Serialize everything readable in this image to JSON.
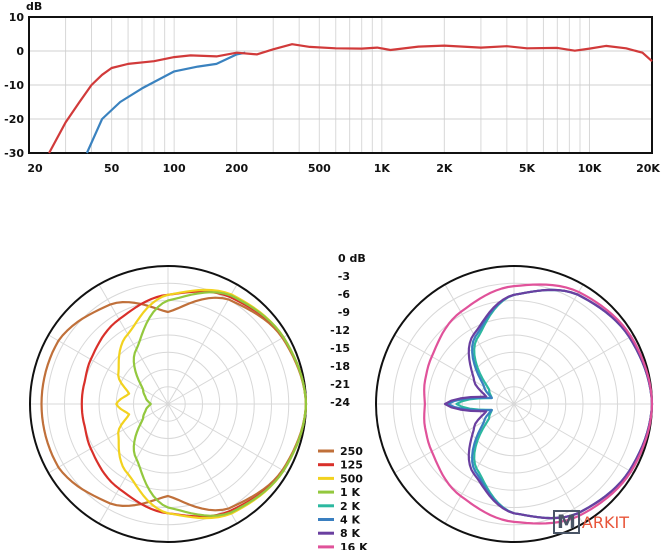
{
  "chart_data": [
    {
      "type": "line",
      "ylabel": "dB",
      "xscale": "log",
      "xlim": [
        20,
        20000
      ],
      "ylim": [
        -30,
        10
      ],
      "grid": true,
      "xticks": [
        {
          "v": 20,
          "label": "20"
        },
        {
          "v": 50,
          "label": "50"
        },
        {
          "v": 100,
          "label": "100"
        },
        {
          "v": 200,
          "label": "200"
        },
        {
          "v": 500,
          "label": "500"
        },
        {
          "v": 1000,
          "label": "1K"
        },
        {
          "v": 2000,
          "label": "2K"
        },
        {
          "v": 5000,
          "label": "5K"
        },
        {
          "v": 10000,
          "label": "10K"
        },
        {
          "v": 20000,
          "label": "20K"
        }
      ],
      "yticks": [
        {
          "v": 10,
          "label": "10"
        },
        {
          "v": 0,
          "label": "0"
        },
        {
          "v": -10,
          "label": "-10"
        },
        {
          "v": -20,
          "label": "-20"
        },
        {
          "v": -30,
          "label": "-30"
        }
      ],
      "series": [
        {
          "color": "#d13a3a",
          "points": [
            [
              25,
              -30
            ],
            [
              30,
              -21
            ],
            [
              35,
              -15
            ],
            [
              40,
              -10
            ],
            [
              45,
              -7
            ],
            [
              50,
              -5
            ],
            [
              60,
              -3.8
            ],
            [
              80,
              -3
            ],
            [
              100,
              -1.8
            ],
            [
              120,
              -1.3
            ],
            [
              160,
              -1.6
            ],
            [
              200,
              -0.5
            ],
            [
              250,
              -1
            ],
            [
              300,
              0.5
            ],
            [
              370,
              2
            ],
            [
              450,
              1.2
            ],
            [
              600,
              0.8
            ],
            [
              800,
              0.7
            ],
            [
              950,
              1
            ],
            [
              1100,
              0.3
            ],
            [
              1500,
              1.3
            ],
            [
              2000,
              1.6
            ],
            [
              3000,
              1
            ],
            [
              4000,
              1.4
            ],
            [
              5000,
              0.8
            ],
            [
              7000,
              0.9
            ],
            [
              8500,
              0.1
            ],
            [
              10000,
              0.7
            ],
            [
              12000,
              1.5
            ],
            [
              15000,
              0.8
            ],
            [
              18000,
              -0.5
            ],
            [
              20000,
              -3
            ]
          ]
        },
        {
          "color": "#3a82bf",
          "points": [
            [
              38,
              -30
            ],
            [
              45,
              -20
            ],
            [
              55,
              -15
            ],
            [
              70,
              -11
            ],
            [
              100,
              -6
            ],
            [
              130,
              -4.6
            ],
            [
              160,
              -3.8
            ],
            [
              200,
              -1
            ],
            [
              220,
              -0.5
            ]
          ]
        }
      ]
    },
    {
      "type": "polar",
      "scale_labels": [
        "0 dB",
        "-3",
        "-6",
        "-9",
        "-12",
        "-15",
        "-18",
        "-21",
        "-24"
      ],
      "rlim": [
        -24,
        0
      ],
      "angles": [
        0,
        30,
        60,
        90,
        120,
        150,
        165,
        180
      ],
      "plots": [
        {
          "series": [
            {
              "name": "250",
              "color": "#c0703a",
              "values": [
                0,
                -1,
                -3,
                -8,
                -4,
                -2,
                -2,
                -2
              ]
            },
            {
              "name": "125",
              "color": "#d9302a",
              "values": [
                0,
                -0.8,
                -2.5,
                -5,
                -7,
                -8.5,
                -9,
                -9
              ]
            },
            {
              "name": "500",
              "color": "#f2d21f",
              "values": [
                0,
                -0.8,
                -2,
                -5,
                -10,
                -14,
                -17,
                -15
              ]
            },
            {
              "name": "1 K",
              "color": "#93c83e",
              "values": [
                0,
                -0.8,
                -2.2,
                -6,
                -13,
                -19,
                -20,
                -21
              ]
            }
          ]
        },
        {
          "series": [
            {
              "name": "2 K",
              "color": "#2cb8a0",
              "values": [
                0,
                -0.8,
                -2,
                -5,
                -11,
                -19,
                -20,
                -14
              ]
            },
            {
              "name": "4 K",
              "color": "#3a7fc0",
              "values": [
                0,
                -0.8,
                -2,
                -5,
                -10.5,
                -18,
                -20,
                -12.5
              ]
            },
            {
              "name": "8 K",
              "color": "#6a3fa0",
              "values": [
                0,
                -0.8,
                -2,
                -5,
                -10,
                -16,
                -19,
                -12
              ]
            },
            {
              "name": "16 K",
              "color": "#e0529a",
              "values": [
                0,
                -0.5,
                -1.5,
                -3.5,
                -5.5,
                -7.5,
                -8,
                -8.5
              ]
            }
          ]
        }
      ]
    }
  ],
  "watermark": {
    "box": "M",
    "rest": "ARKIT"
  }
}
